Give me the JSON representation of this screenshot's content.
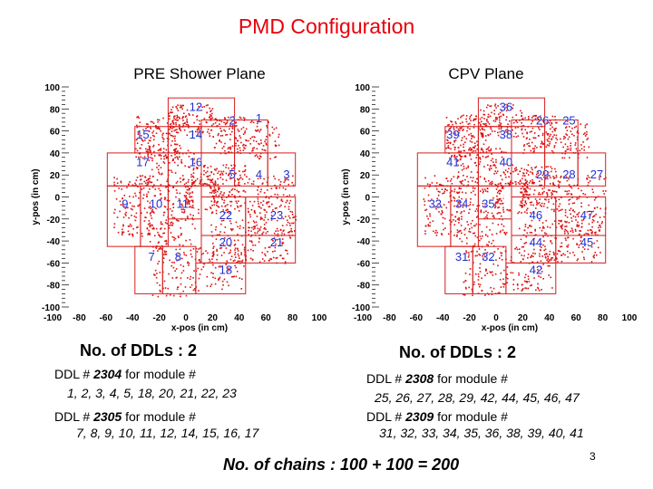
{
  "title": "PMD Configuration",
  "pre_plot": {
    "title": "PRE Shower Plane",
    "ylabel": "y-pos (in cm)",
    "xlabel": "x-pos (in cm)",
    "y_ticks": [
      "100",
      "80",
      "60",
      "40",
      "20",
      "0",
      "-20",
      "-40",
      "-60",
      "-80",
      "-100"
    ],
    "x_ticks": [
      "-100",
      "-80",
      "-60",
      "-40",
      "-20",
      "0",
      "20",
      "40",
      "60",
      "80",
      "100"
    ],
    "module_labels": [
      {
        "text": "12",
        "x": -5,
        "y": 78
      },
      {
        "text": "2",
        "x": 28,
        "y": 66
      },
      {
        "text": "1",
        "x": 52,
        "y": 68
      },
      {
        "text": "15",
        "x": -53,
        "y": 53
      },
      {
        "text": "14",
        "x": -5,
        "y": 53
      },
      {
        "text": "17",
        "x": -53,
        "y": 28
      },
      {
        "text": "16",
        "x": -5,
        "y": 28
      },
      {
        "text": "5",
        "x": 28,
        "y": 17
      },
      {
        "text": "4",
        "x": 52,
        "y": 17
      },
      {
        "text": "3",
        "x": 77,
        "y": 17
      },
      {
        "text": "9",
        "x": -69,
        "y": -10
      },
      {
        "text": "10",
        "x": -41,
        "y": -10
      },
      {
        "text": "11",
        "x": -17,
        "y": -10
      },
      {
        "text": "22",
        "x": 22,
        "y": -20
      },
      {
        "text": "23",
        "x": 68,
        "y": -20
      },
      {
        "text": "20",
        "x": 22,
        "y": -45
      },
      {
        "text": "21",
        "x": 68,
        "y": -45
      },
      {
        "text": "7",
        "x": -45,
        "y": -58
      },
      {
        "text": "8",
        "x": -21,
        "y": -58
      },
      {
        "text": "18",
        "x": 22,
        "y": -70
      }
    ]
  },
  "cpv_plot": {
    "title": "CPV Plane",
    "ylabel": "y-pos (in cm)",
    "xlabel": "x-pos (in cm)",
    "y_ticks": [
      "100",
      "80",
      "60",
      "40",
      "20",
      "0",
      "-20",
      "-40",
      "-60",
      "-80",
      "-100"
    ],
    "x_ticks": [
      "-100",
      "-80",
      "-60",
      "-40",
      "-20",
      "0",
      "20",
      "40",
      "60",
      "80",
      "100"
    ],
    "module_labels": [
      {
        "text": "36",
        "x": -5,
        "y": 78
      },
      {
        "text": "26",
        "x": 28,
        "y": 66
      },
      {
        "text": "25",
        "x": 52,
        "y": 66
      },
      {
        "text": "39",
        "x": -53,
        "y": 53
      },
      {
        "text": "38",
        "x": -5,
        "y": 53
      },
      {
        "text": "41",
        "x": -53,
        "y": 28
      },
      {
        "text": "40",
        "x": -5,
        "y": 28
      },
      {
        "text": "29",
        "x": 28,
        "y": 17
      },
      {
        "text": "28",
        "x": 52,
        "y": 17
      },
      {
        "text": "27",
        "x": 77,
        "y": 17
      },
      {
        "text": "33",
        "x": -69,
        "y": -10
      },
      {
        "text": "34",
        "x": -45,
        "y": -10
      },
      {
        "text": "35",
        "x": -21,
        "y": -10
      },
      {
        "text": "46",
        "x": 22,
        "y": -20
      },
      {
        "text": "47",
        "x": 68,
        "y": -20
      },
      {
        "text": "44",
        "x": 22,
        "y": -45
      },
      {
        "text": "45",
        "x": 68,
        "y": -45
      },
      {
        "text": "31",
        "x": -45,
        "y": -58
      },
      {
        "text": "32",
        "x": -21,
        "y": -58
      },
      {
        "text": "42",
        "x": 22,
        "y": -70
      }
    ]
  },
  "pre_ddl": {
    "heading": "No. of DDLs : 2",
    "lines": [
      {
        "prefix": "DDL # ",
        "num": "2304",
        "suffix": " for module #",
        "modules": "1, 2, 3, 4, 5, 18, 20, 21, 22, 23"
      },
      {
        "prefix": "DDL # ",
        "num": "2305",
        "suffix": " for module #",
        "modules": "7, 8, 9, 10, 11, 12, 14, 15, 16, 17"
      }
    ]
  },
  "cpv_ddl": {
    "heading": "No. of DDLs : 2",
    "lines": [
      {
        "prefix": "DDL # ",
        "num": "2308",
        "suffix": " for module #",
        "modules": "25, 26, 27, 28, 29, 42, 44, 45, 46, 47"
      },
      {
        "prefix": "DDL # ",
        "num": "2309",
        "suffix": " for module #",
        "modules": "31, 32, 33, 34, 35, 36, 38, 39, 40, 41"
      }
    ]
  },
  "chains": "No. of chains : 100 + 100 = 200",
  "page_number": "3",
  "colors": {
    "title": "#e8000b",
    "scatter": "#dd1111",
    "label": "#1f2fd1",
    "border": "#d61e1e"
  }
}
